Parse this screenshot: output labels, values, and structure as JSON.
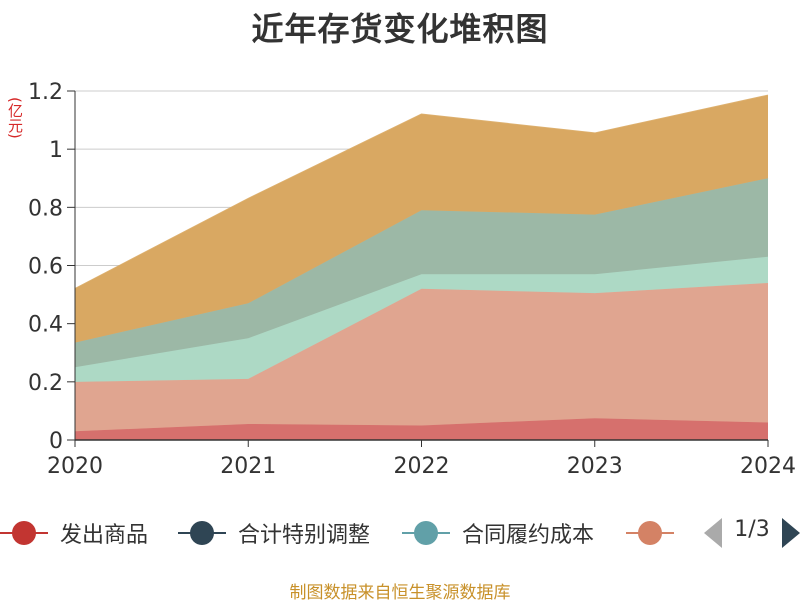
{
  "title": "近年存货变化堆积图",
  "unit": "(亿元)",
  "source": "制图数据来自恒生聚源数据库",
  "pager": {
    "text": "1/3"
  },
  "legend": [
    {
      "label": "发出商品",
      "color": "#c23531"
    },
    {
      "label": "合计特别调整",
      "color": "#2f4554"
    },
    {
      "label": "合同履约成本",
      "color": "#61a0a8"
    },
    {
      "label": "",
      "color": "#d48265"
    }
  ],
  "chart_data": {
    "type": "area",
    "stacked": true,
    "title": "近年存货变化堆积图",
    "ylabel": "(亿元)",
    "categories": [
      "2020",
      "2021",
      "2022",
      "2023",
      "2024"
    ],
    "ylim": [
      0,
      1.2
    ],
    "yticks": [
      0,
      0.2,
      0.4,
      0.6,
      0.8,
      1,
      1.2
    ],
    "ytick_labels": [
      "0",
      "0.2",
      "0.4",
      "0.6",
      "0.8",
      "1",
      "1.2"
    ],
    "grid": true,
    "legend_position": "bottom",
    "series": [
      {
        "name": "发出商品",
        "color": "#d6706d",
        "values": [
          0.03,
          0.055,
          0.05,
          0.075,
          0.06
        ]
      },
      {
        "color": "#e0a590",
        "values": [
          0.17,
          0.155,
          0.47,
          0.43,
          0.48
        ]
      },
      {
        "color": "#add9c5",
        "values": [
          0.05,
          0.14,
          0.05,
          0.065,
          0.09
        ]
      },
      {
        "color": "#9cb8a6",
        "values": [
          0.085,
          0.12,
          0.22,
          0.205,
          0.27
        ]
      },
      {
        "color": "#d9a862",
        "values": [
          0.185,
          0.36,
          0.33,
          0.28,
          0.285
        ]
      }
    ]
  }
}
